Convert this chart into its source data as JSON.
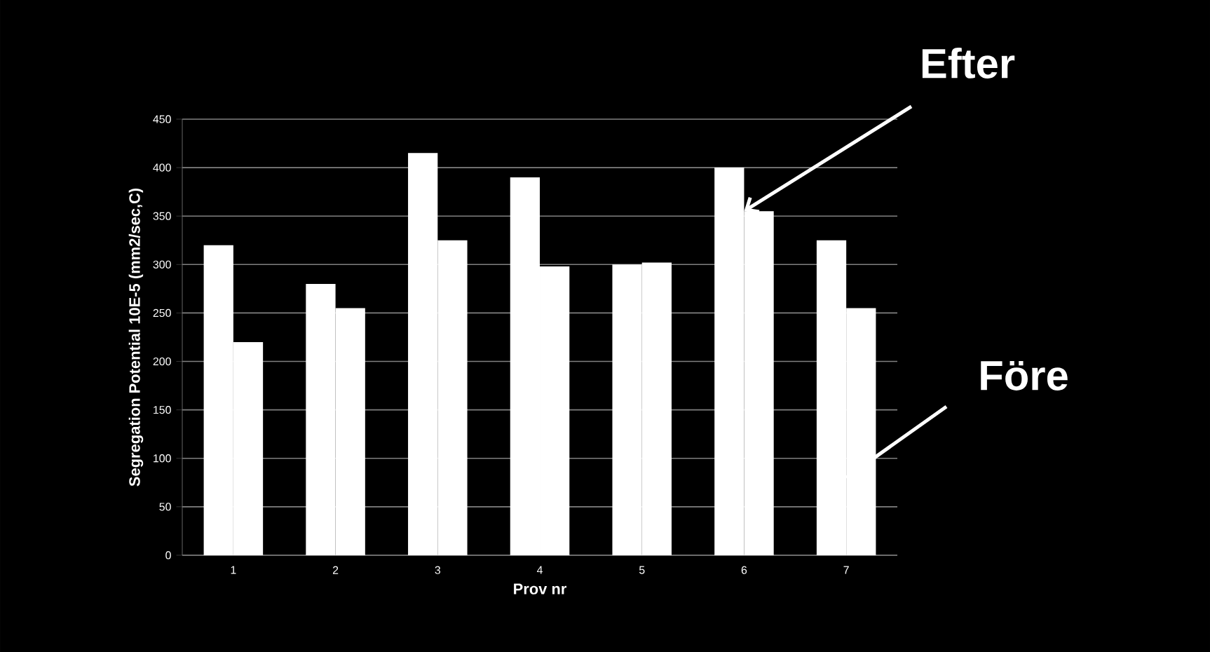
{
  "chart_data": {
    "type": "bar",
    "xlabel": "Prov nr",
    "ylabel": "Segregation Potential 10E-5 (mm2/sec,C)",
    "categories": [
      "1",
      "2",
      "3",
      "4",
      "5",
      "6",
      "7"
    ],
    "series": [
      {
        "color": "#ffffff",
        "values": [
          320,
          280,
          415,
          390,
          300,
          400,
          325
        ]
      },
      {
        "color": "#ffffff",
        "values": [
          220,
          255,
          325,
          298,
          302,
          355,
          255
        ]
      }
    ],
    "ylim": [
      0,
      450
    ],
    "yticks": [
      0,
      50,
      100,
      150,
      200,
      250,
      300,
      350,
      400,
      450
    ],
    "grid": "y",
    "annotations": [
      {
        "text": "Efter",
        "x": "6",
        "y": 355
      },
      {
        "text": "Före",
        "x": "7",
        "y": 80
      }
    ]
  }
}
